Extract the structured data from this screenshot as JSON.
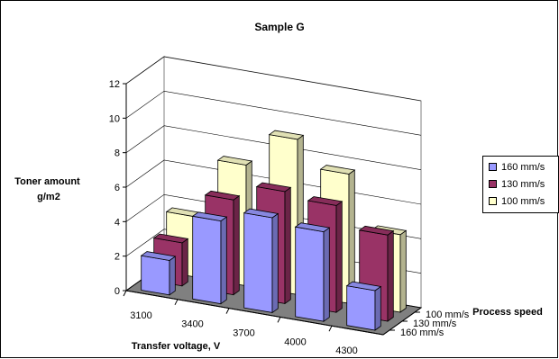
{
  "chart_data": {
    "type": "bar",
    "subtype": "3d-column",
    "title": "Sample G",
    "xlabel": "Transfer voltage, V",
    "ylabel": "Toner amount g/m2",
    "zlabel": "Process speed",
    "categories": [
      "3100",
      "3400",
      "3700",
      "4000",
      "4300"
    ],
    "yticks": [
      "0",
      "2",
      "4",
      "6",
      "8",
      "10",
      "12"
    ],
    "ylim": [
      0,
      12
    ],
    "grid": true,
    "legend_position": "right",
    "series": [
      {
        "name": "160 mm/s",
        "color": "#9999ff",
        "values": [
          2.0,
          4.8,
          5.5,
          5.2,
          2.3
        ]
      },
      {
        "name": "130 mm/s",
        "color": "#993366",
        "values": [
          2.5,
          5.5,
          6.5,
          6.2,
          5.0
        ]
      },
      {
        "name": "100 mm/s",
        "color": "#ffffcc",
        "values": [
          3.5,
          7.0,
          9.0,
          7.5,
          4.5
        ]
      }
    ],
    "depth_labels": [
      "100 mm/s",
      "130 mm/s",
      "160 mm/s"
    ]
  }
}
